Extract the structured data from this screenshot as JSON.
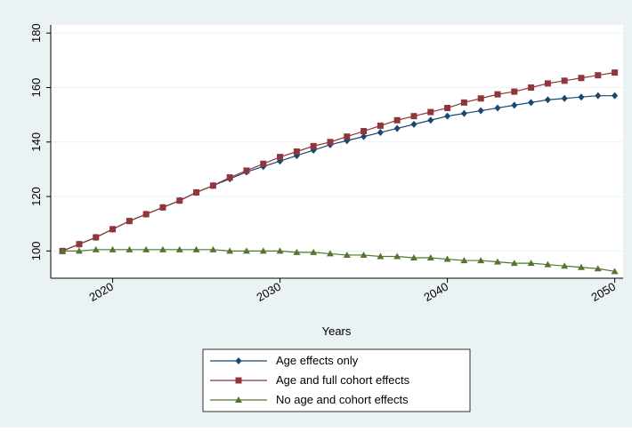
{
  "chart_data": {
    "type": "line",
    "x_label": "Years",
    "x": [
      2017,
      2018,
      2019,
      2020,
      2021,
      2022,
      2023,
      2024,
      2025,
      2026,
      2027,
      2028,
      2029,
      2030,
      2031,
      2032,
      2033,
      2034,
      2035,
      2036,
      2037,
      2038,
      2039,
      2040,
      2041,
      2042,
      2043,
      2044,
      2045,
      2046,
      2047,
      2048,
      2049,
      2050
    ],
    "series": [
      {
        "name": "Age effects only",
        "color": "#1a476f",
        "marker": "diamond",
        "values": [
          100,
          102.5,
          105,
          108,
          111,
          113.5,
          116,
          118.5,
          121.5,
          124,
          126.5,
          129,
          131,
          133,
          135,
          137,
          139,
          140.5,
          142,
          143.5,
          145,
          146.5,
          148,
          149.5,
          150.5,
          151.5,
          152.5,
          153.5,
          154.5,
          155.5,
          156,
          156.5,
          157,
          157
        ]
      },
      {
        "name": "Age and full cohort effects",
        "color": "#90353b",
        "marker": "square",
        "values": [
          100,
          102.5,
          105,
          108,
          111,
          113.5,
          116,
          118.5,
          121.5,
          124,
          127,
          129.5,
          132,
          134.5,
          136.5,
          138.5,
          140,
          142,
          144,
          146,
          148,
          149.5,
          151,
          152.5,
          154.5,
          156,
          157.5,
          158.5,
          160,
          161.5,
          162.5,
          163.5,
          164.5,
          165.5
        ]
      },
      {
        "name": "No age and cohort effects",
        "color": "#55752f",
        "marker": "triangle",
        "values": [
          100,
          100,
          100.5,
          100.5,
          100.5,
          100.5,
          100.5,
          100.5,
          100.5,
          100.5,
          100,
          100,
          100,
          100,
          99.5,
          99.5,
          99,
          98.5,
          98.5,
          98,
          98,
          97.5,
          97.5,
          97,
          96.5,
          96.5,
          96,
          95.5,
          95.5,
          95,
          94.5,
          94,
          93.5,
          92.5
        ]
      }
    ],
    "xlim": [
      2016.3,
      2050.5
    ],
    "xticks": [
      2020,
      2030,
      2040,
      2050
    ],
    "ylim": [
      90,
      183
    ],
    "yticks": [
      100,
      120,
      140,
      160,
      180
    ],
    "grid": true,
    "legend": "bottom"
  }
}
